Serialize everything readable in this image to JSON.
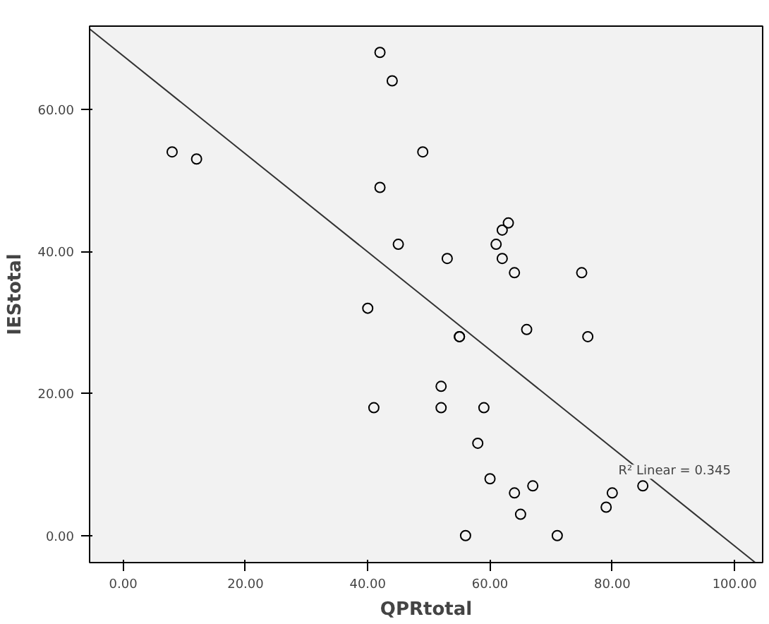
{
  "chart_data": {
    "type": "scatter",
    "xlabel": "QPRtotal",
    "ylabel": "IEStotal",
    "xlim": [
      -5.5,
      104.6
    ],
    "ylim": [
      -3.8,
      71.7
    ],
    "xticks": [
      {
        "value": 0,
        "label": "0.00"
      },
      {
        "value": 20,
        "label": "20.00"
      },
      {
        "value": 40,
        "label": "40.00"
      },
      {
        "value": 60,
        "label": "60.00"
      },
      {
        "value": 80,
        "label": "80.00"
      },
      {
        "value": 100,
        "label": "100.00"
      }
    ],
    "yticks": [
      {
        "value": 0,
        "label": "0.00"
      },
      {
        "value": 20,
        "label": "20.00"
      },
      {
        "value": 40,
        "label": "40.00"
      },
      {
        "value": 60,
        "label": "60.00"
      }
    ],
    "grid": false,
    "marker": "circle",
    "series": [
      {
        "color": "#000000",
        "x": [
          8,
          12,
          42,
          44,
          49,
          42,
          45,
          53,
          63,
          62,
          61,
          62,
          64,
          75,
          40,
          55,
          55,
          66,
          76,
          52,
          41,
          52,
          59,
          58,
          60,
          64,
          67,
          80,
          79,
          65,
          56,
          71,
          85
        ],
        "values": [
          54,
          53,
          68,
          64,
          54,
          49,
          41,
          39,
          44,
          43,
          41,
          39,
          37,
          37,
          32,
          28,
          28,
          29,
          28,
          21,
          18,
          18,
          18,
          13,
          8,
          6,
          7,
          6,
          4,
          3,
          0,
          0,
          7
        ]
      },
      {
        "type": "line",
        "marker": "none",
        "color": "#333333",
        "x": [
          -5.5,
          103.4
        ],
        "values": [
          71.3,
          -3.8
        ]
      }
    ],
    "annotations": [
      {
        "text": "R² Linear = 0.345",
        "x": 81,
        "y": 7
      }
    ]
  }
}
